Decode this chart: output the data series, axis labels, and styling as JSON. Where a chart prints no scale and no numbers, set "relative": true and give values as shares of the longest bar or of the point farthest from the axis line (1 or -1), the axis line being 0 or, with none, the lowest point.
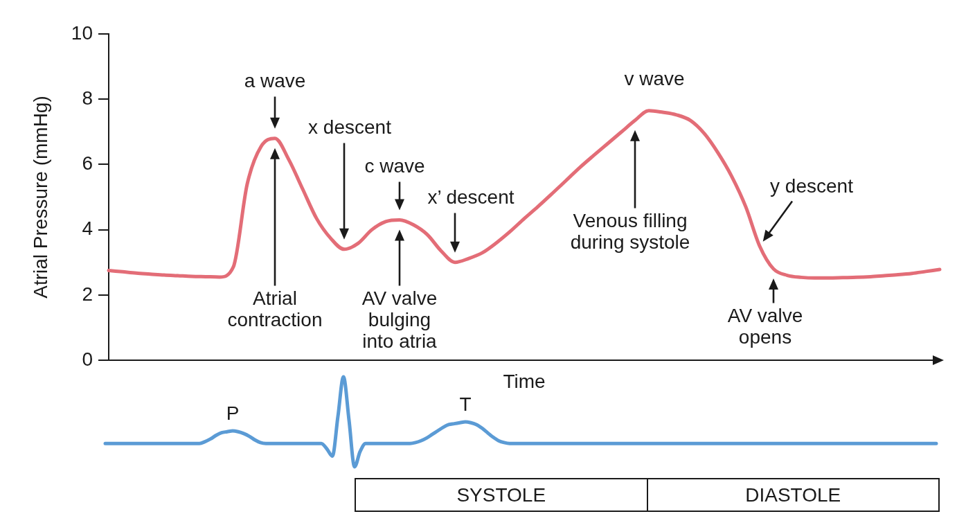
{
  "chart_data": [
    {
      "type": "line",
      "ylabel": "Atrial Pressure (mmHg)",
      "xlabel": "Time",
      "categories": [
        null,
        null,
        null,
        null,
        null,
        null,
        null,
        null,
        null,
        null,
        null,
        null,
        null,
        null,
        null,
        null,
        null,
        null,
        null,
        null,
        null,
        null,
        null,
        null,
        null,
        null,
        null,
        null,
        null,
        null,
        null,
        null,
        null,
        null,
        null,
        null,
        null,
        null,
        null,
        null,
        null,
        null,
        null,
        null,
        null,
        null,
        null,
        null,
        null,
        null,
        null,
        null,
        null,
        null,
        null,
        null,
        null,
        null,
        null,
        null,
        null
      ],
      "values": [
        2.75,
        2.71,
        2.67,
        2.64,
        2.61,
        2.59,
        2.57,
        2.56,
        2.55,
        2.86,
        5.4,
        6.55,
        6.8,
        6.15,
        5.25,
        4.35,
        3.75,
        3.4,
        3.58,
        4.0,
        4.25,
        4.3,
        4.15,
        3.85,
        3.35,
        3.0,
        3.12,
        3.3,
        3.6,
        3.95,
        4.34,
        4.71,
        5.1,
        5.5,
        5.9,
        6.27,
        6.63,
        6.99,
        7.35,
        7.65,
        7.6,
        7.52,
        7.35,
        6.95,
        6.35,
        5.62,
        4.7,
        3.5,
        2.8,
        2.6,
        2.54,
        2.52,
        2.52,
        2.53,
        2.54,
        2.56,
        2.59,
        2.62,
        2.66,
        2.72,
        2.78
      ],
      "color": "#e36d77",
      "ylim": [
        0,
        10
      ],
      "yticks": [
        0,
        2,
        4,
        6,
        8,
        10
      ],
      "marker": "none",
      "annotations": [
        "a wave",
        "Atrial contraction",
        "x descent",
        "c wave",
        "AV valve bulging into atria",
        "x’ descent",
        "v wave",
        "Venous filling during systole",
        "y descent",
        "AV valve opens"
      ]
    },
    {
      "type": "line",
      "relative": true,
      "categories": [
        null,
        null,
        null,
        null,
        null,
        null,
        null,
        null,
        null,
        null,
        null,
        null,
        null,
        null,
        null,
        null,
        null,
        null,
        null,
        null,
        null,
        null,
        null,
        null,
        null,
        null,
        null,
        null,
        null,
        null,
        null,
        null,
        null,
        null,
        null,
        null,
        null,
        null,
        null,
        null,
        null,
        null,
        null,
        null,
        null,
        null,
        null,
        null,
        null,
        null,
        null,
        null,
        null,
        null,
        null,
        null,
        null,
        null,
        null,
        null,
        null,
        null,
        null,
        null,
        null,
        null,
        null,
        null,
        null,
        null,
        null,
        null,
        null,
        null,
        null,
        null,
        null,
        null,
        null,
        null,
        null,
        null,
        null,
        null,
        null,
        null,
        null,
        null,
        null,
        null,
        null,
        null,
        null,
        null,
        null,
        null,
        null,
        null,
        null,
        null,
        null,
        null,
        null,
        null,
        null,
        null,
        null,
        null,
        null,
        null,
        null,
        null,
        null,
        null,
        null,
        null,
        null,
        null,
        null,
        null,
        null,
        null,
        null,
        null,
        null,
        null,
        null,
        null,
        null,
        null,
        null,
        null,
        null,
        null,
        null,
        null,
        null,
        null,
        null,
        null,
        null,
        null,
        null,
        null,
        null,
        null,
        null,
        null,
        null,
        null,
        null
      ],
      "values": [
        0.26,
        0.26,
        0.26,
        0.26,
        0.26,
        0.26,
        0.26,
        0.26,
        0.26,
        0.26,
        0.26,
        0.26,
        0.26,
        0.26,
        0.26,
        0.26,
        0.26,
        0.26,
        0.28,
        0.31,
        0.35,
        0.38,
        0.39,
        0.4,
        0.39,
        0.37,
        0.34,
        0.3,
        0.27,
        0.26,
        0.26,
        0.26,
        0.26,
        0.26,
        0.26,
        0.26,
        0.26,
        0.26,
        0.26,
        0.26,
        0.2,
        0.12,
        0.56,
        1,
        0.52,
        0,
        0.17,
        0.26,
        0.26,
        0.26,
        0.26,
        0.26,
        0.26,
        0.26,
        0.26,
        0.26,
        0.27,
        0.29,
        0.32,
        0.36,
        0.4,
        0.44,
        0.47,
        0.48,
        0.49,
        0.5,
        0.49,
        0.47,
        0.43,
        0.38,
        0.33,
        0.29,
        0.27,
        0.26,
        0.26,
        0.26,
        0.26,
        0.26,
        0.26,
        0.26,
        0.26,
        0.26,
        0.26,
        0.26,
        0.26,
        0.26,
        0.26,
        0.26,
        0.26,
        0.26,
        0.26,
        0.26,
        0.26,
        0.26,
        0.26,
        0.26,
        0.26,
        0.26,
        0.26,
        0.26,
        0.26,
        0.26,
        0.26,
        0.26,
        0.26,
        0.26,
        0.26,
        0.26,
        0.26,
        0.26,
        0.26,
        0.26,
        0.26,
        0.26,
        0.26,
        0.26,
        0.26,
        0.26,
        0.26,
        0.26,
        0.26,
        0.26,
        0.26,
        0.26,
        0.26,
        0.26,
        0.26,
        0.26,
        0.26,
        0.26,
        0.26,
        0.26,
        0.26,
        0.26,
        0.26,
        0.26,
        0.26,
        0.26,
        0.26,
        0.26,
        0.26,
        0.26,
        0.26,
        0.26,
        0.26,
        0.26,
        0.26,
        0.26,
        0.26,
        0.26,
        0.26
      ],
      "color": "#5b9bd5",
      "marker": "none",
      "annotations": [
        "P",
        "T"
      ]
    },
    {
      "type": "other",
      "annotations": [
        "SYSTOLE",
        "DIASTOLE"
      ]
    }
  ]
}
